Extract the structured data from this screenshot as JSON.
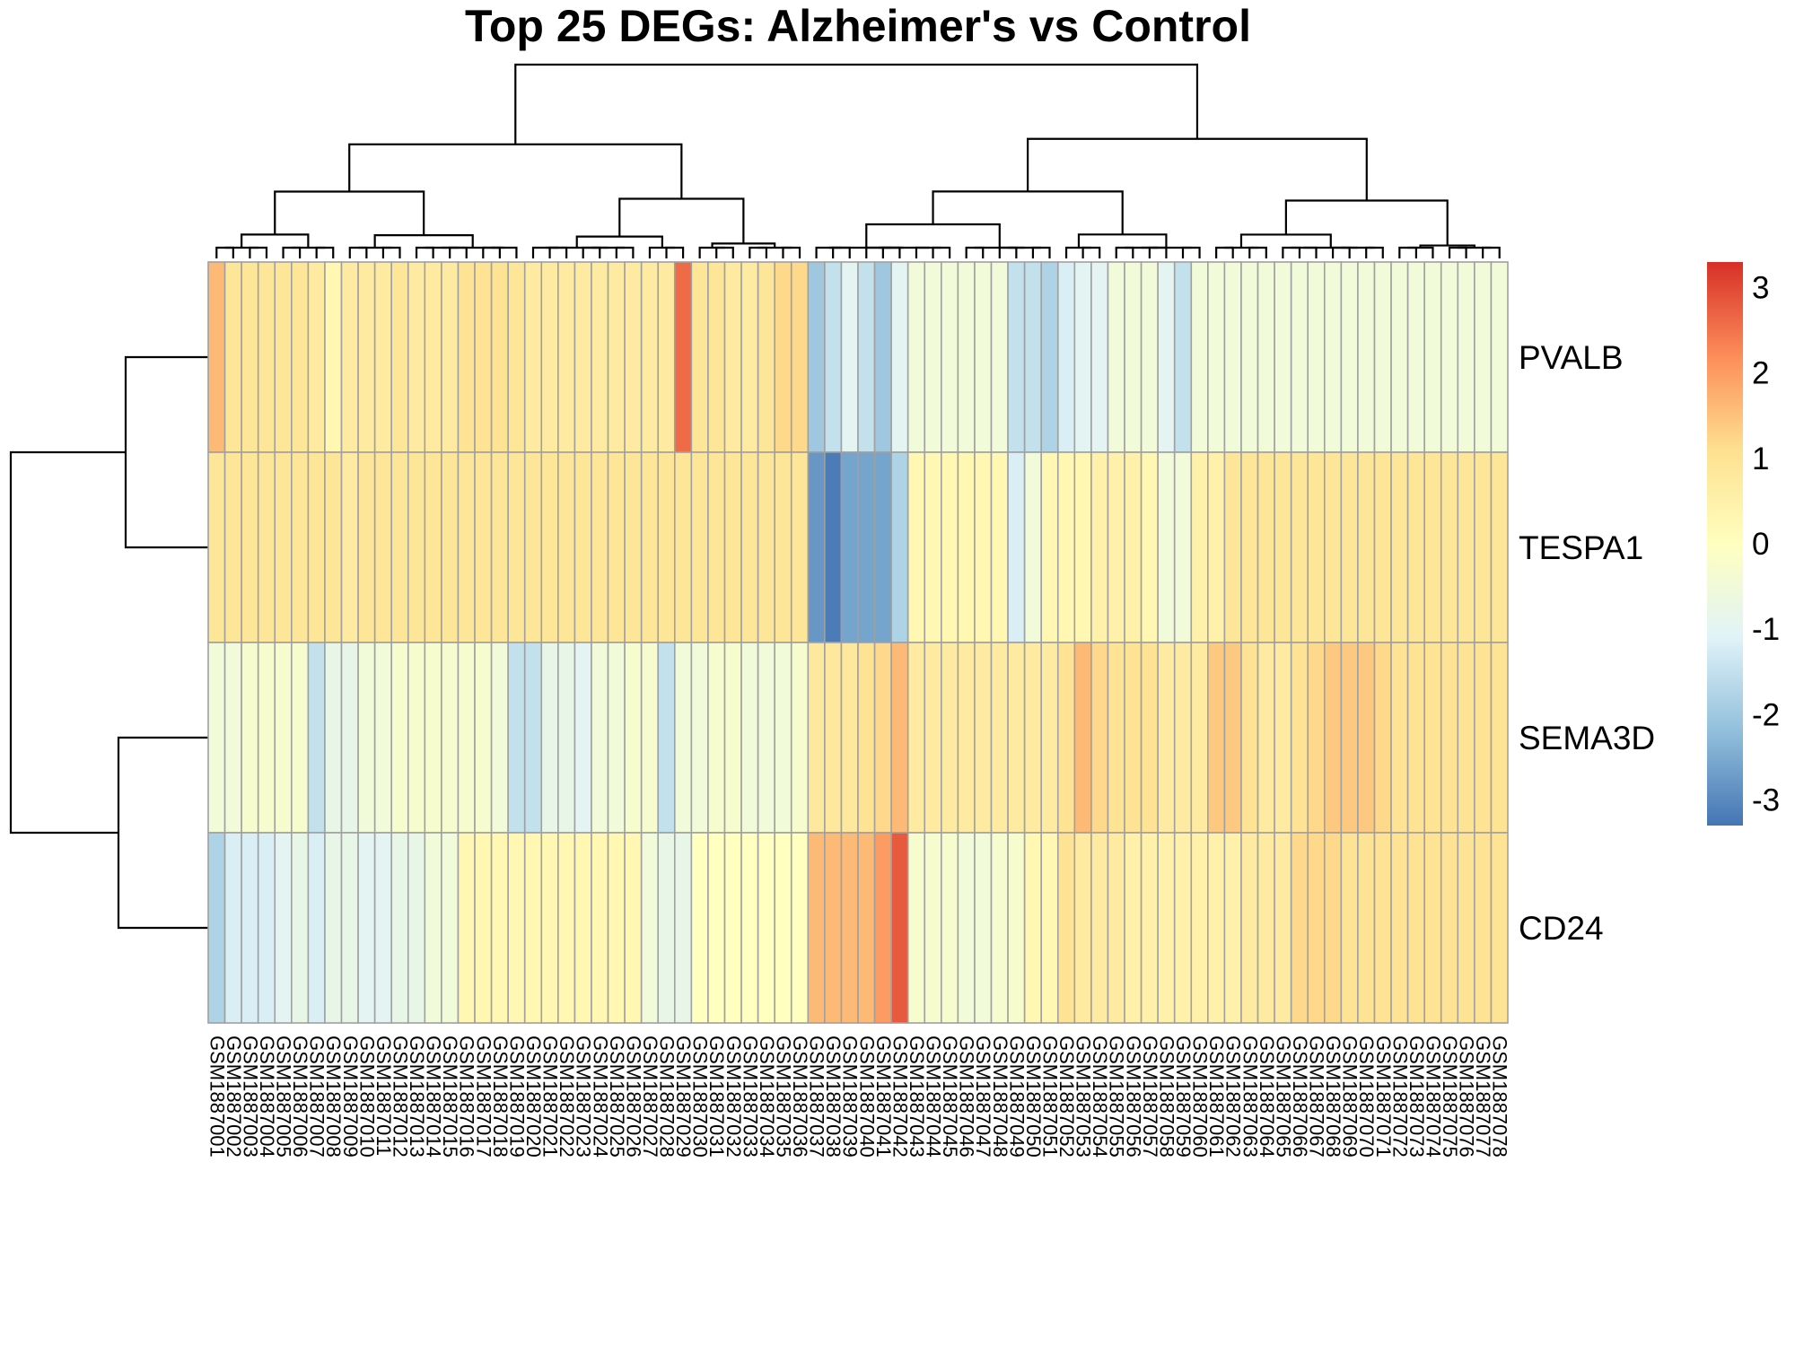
{
  "chart_data": {
    "type": "heatmap",
    "title": "Top 25 DEGs: Alzheimer's vs Control",
    "rows": [
      "PVALB",
      "TESPA1",
      "SEMA3D",
      "CD24"
    ],
    "columns": [
      "GSM1887001",
      "GSM1887002",
      "GSM1887003",
      "GSM1887004",
      "GSM1887005",
      "GSM1887006",
      "GSM1887007",
      "GSM1887008",
      "GSM1887009",
      "GSM1887010",
      "GSM1887011",
      "GSM1887012",
      "GSM1887013",
      "GSM1887014",
      "GSM1887015",
      "GSM1887016",
      "GSM1887017",
      "GSM1887018",
      "GSM1887019",
      "GSM1887020",
      "GSM1887021",
      "GSM1887022",
      "GSM1887023",
      "GSM1887024",
      "GSM1887025",
      "GSM1887026",
      "GSM1887027",
      "GSM1887028",
      "GSM1887029",
      "GSM1887030",
      "GSM1887031",
      "GSM1887032",
      "GSM1887033",
      "GSM1887034",
      "GSM1887035",
      "GSM1887036",
      "GSM1887037",
      "GSM1887038",
      "GSM1887039",
      "GSM1887040",
      "GSM1887041",
      "GSM1887042",
      "GSM1887043",
      "GSM1887044",
      "GSM1887045",
      "GSM1887046",
      "GSM1887047",
      "GSM1887048",
      "GSM1887049",
      "GSM1887050",
      "GSM1887051",
      "GSM1887052",
      "GSM1887053",
      "GSM1887054",
      "GSM1887055",
      "GSM1887056",
      "GSM1887057",
      "GSM1887058",
      "GSM1887059",
      "GSM1887060",
      "GSM1887061",
      "GSM1887062",
      "GSM1887063",
      "GSM1887064",
      "GSM1887065",
      "GSM1887066",
      "GSM1887067",
      "GSM1887068",
      "GSM1887069",
      "GSM1887070",
      "GSM1887071",
      "GSM1887072",
      "GSM1887073",
      "GSM1887074",
      "GSM1887075",
      "GSM1887076",
      "GSM1887077",
      "GSM1887078"
    ],
    "values": [
      [
        1.6,
        0.9,
        0.9,
        0.9,
        0.9,
        0.9,
        0.7,
        0.3,
        0.7,
        0.7,
        0.7,
        0.9,
        0.7,
        0.7,
        0.7,
        1.0,
        1.0,
        1.0,
        0.9,
        0.7,
        0.7,
        0.7,
        0.7,
        0.7,
        0.7,
        0.7,
        0.7,
        0.7,
        2.6,
        0.9,
        0.9,
        0.7,
        0.7,
        0.9,
        1.2,
        1.2,
        -2.0,
        -1.5,
        -1.0,
        -1.5,
        -2.0,
        -1.0,
        -0.5,
        -0.5,
        -0.5,
        -0.5,
        -0.5,
        -0.5,
        -1.5,
        -1.5,
        -1.8,
        -1.2,
        -1.0,
        -1.0,
        -0.5,
        -0.5,
        -0.5,
        -1.0,
        -1.5,
        -0.5,
        -0.5,
        -0.5,
        -0.5,
        -0.5,
        -0.5,
        -0.5,
        -0.5,
        -0.5,
        -0.5,
        -0.5,
        -0.5,
        -0.5,
        -0.5,
        -0.5,
        -0.5,
        -0.5,
        -0.5,
        -0.5
      ],
      [
        0.9,
        0.9,
        0.9,
        0.9,
        0.9,
        0.9,
        0.9,
        0.9,
        0.7,
        0.9,
        0.9,
        0.9,
        0.9,
        0.9,
        0.9,
        0.9,
        0.9,
        0.9,
        0.9,
        0.9,
        0.9,
        0.9,
        0.9,
        0.9,
        0.9,
        0.9,
        0.9,
        0.9,
        0.9,
        0.9,
        0.9,
        0.9,
        0.9,
        0.9,
        0.9,
        0.9,
        -2.8,
        -3.2,
        -2.6,
        -2.6,
        -2.6,
        -1.8,
        0.3,
        0.3,
        0.3,
        0.3,
        0.3,
        0.3,
        -1.2,
        -0.5,
        0.3,
        0.3,
        0.3,
        0.5,
        0.5,
        0.5,
        0.3,
        -0.5,
        -0.5,
        0.5,
        0.5,
        0.9,
        0.9,
        0.9,
        0.9,
        0.9,
        0.9,
        0.9,
        0.9,
        0.9,
        0.9,
        0.9,
        0.9,
        0.9,
        0.9,
        0.9,
        0.9,
        0.9
      ],
      [
        -0.5,
        -0.5,
        -0.3,
        -0.3,
        -0.3,
        -0.3,
        -1.5,
        -0.8,
        -0.8,
        -0.5,
        -0.5,
        -0.3,
        -0.3,
        -0.3,
        -0.3,
        -0.3,
        -0.3,
        -0.5,
        -1.5,
        -1.5,
        -0.8,
        -0.8,
        -1.0,
        -0.5,
        -0.5,
        -0.3,
        -0.3,
        -1.5,
        -0.5,
        -0.5,
        -0.3,
        -0.3,
        -0.5,
        -0.5,
        -0.5,
        -0.3,
        0.8,
        0.8,
        0.8,
        1.0,
        1.2,
        1.6,
        0.7,
        0.7,
        0.7,
        0.7,
        0.7,
        0.7,
        0.7,
        0.7,
        0.7,
        1.0,
        1.6,
        1.2,
        1.0,
        1.0,
        1.0,
        0.7,
        0.7,
        0.7,
        1.4,
        1.4,
        1.0,
        0.7,
        0.7,
        1.0,
        1.2,
        1.4,
        1.4,
        1.4,
        1.2,
        1.0,
        1.0,
        1.0,
        1.0,
        1.0,
        1.0,
        1.0
      ],
      [
        -1.8,
        -1.2,
        -1.2,
        -1.2,
        -1.0,
        -0.8,
        -1.2,
        -0.8,
        -0.8,
        -1.0,
        -1.0,
        -0.8,
        -0.8,
        -0.5,
        -0.5,
        0.3,
        0.3,
        0.3,
        0.3,
        0.3,
        0.3,
        0.3,
        0.3,
        0.3,
        0.3,
        0.3,
        -0.5,
        -0.8,
        -0.8,
        0.0,
        0.0,
        0.0,
        0.0,
        0.0,
        0.0,
        0.0,
        1.6,
        1.6,
        1.6,
        1.6,
        2.0,
        2.8,
        -0.3,
        -0.3,
        -0.3,
        -0.5,
        -0.5,
        -0.3,
        -0.3,
        0.3,
        0.3,
        1.0,
        0.7,
        0.7,
        0.7,
        0.5,
        0.5,
        0.5,
        0.5,
        0.5,
        0.5,
        0.5,
        0.7,
        0.7,
        0.7,
        1.2,
        1.2,
        1.2,
        1.0,
        1.0,
        1.0,
        1.0,
        1.0,
        1.0,
        1.0,
        1.0,
        1.0,
        1.0
      ]
    ],
    "color_scale": {
      "min": -3.3,
      "max": 3.3,
      "ticks": [
        3,
        2,
        1,
        0,
        -1,
        -2,
        -3
      ],
      "colors": [
        "#4575b4",
        "#91bfdb",
        "#e0f3f8",
        "#ffffbf",
        "#fee090",
        "#fc8d59",
        "#d73027"
      ]
    },
    "grid_color": "#a0a0a0",
    "row_dendrogram": {
      "merges": [
        [
          0,
          1
        ],
        [
          2,
          3
        ],
        [
          [
            0,
            1
          ],
          [
            2,
            3
          ]
        ]
      ]
    },
    "column_dendrogram": {
      "split_after_column": 36
    },
    "legend": "right"
  }
}
